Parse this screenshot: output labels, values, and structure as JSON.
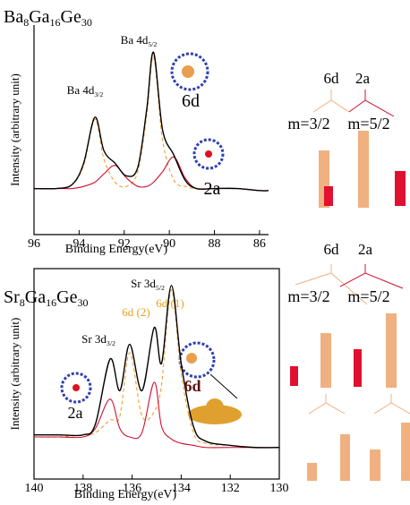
{
  "chart_data": [
    {
      "type": "line",
      "title": [
        "Ba",
        "8",
        "Ga",
        "16",
        "Ge",
        "30"
      ],
      "x_label": "Binding Energy(eV)",
      "y_label": "Intensity (arbitrary unit)",
      "xlim": [
        96,
        85.6
      ],
      "xticks": [
        96,
        94,
        92,
        90,
        88,
        86
      ],
      "ylim": [
        0,
        1
      ],
      "frame": false,
      "x": [
        96,
        95,
        94.3,
        93.8,
        93.3,
        92.9,
        92.4,
        91.9,
        91.4,
        91.0,
        90.7,
        90.3,
        89.8,
        89.3,
        88.8,
        88,
        87,
        86,
        85.6
      ],
      "series": [
        {
          "color": "#f0a030",
          "dashed": true,
          "values": [
            0.22,
            0.22,
            0.24,
            0.33,
            0.55,
            0.36,
            0.25,
            0.23,
            0.3,
            0.57,
            0.85,
            0.45,
            0.26,
            0.23,
            0.22,
            0.22,
            0.22,
            0.21,
            0.21
          ]
        },
        {
          "color": "#d01030",
          "dashed": false,
          "values": [
            0.22,
            0.22,
            0.22,
            0.23,
            0.25,
            0.29,
            0.33,
            0.27,
            0.23,
            0.23,
            0.25,
            0.3,
            0.37,
            0.27,
            0.22,
            0.22,
            0.22,
            0.21,
            0.21
          ]
        },
        {
          "color": "#000000",
          "dashed": false,
          "values": [
            0.22,
            0.22,
            0.24,
            0.34,
            0.56,
            0.4,
            0.34,
            0.28,
            0.32,
            0.6,
            0.87,
            0.5,
            0.38,
            0.26,
            0.22,
            0.22,
            0.22,
            0.21,
            0.21
          ]
        }
      ],
      "annotations": [
        {
          "text": [
            "Ba 4d",
            "3/2"
          ],
          "color": "#000000"
        },
        {
          "text": [
            "Ba 4d",
            "5/2"
          ],
          "color": "#000000"
        },
        {
          "text": [
            "6d"
          ],
          "color": "#000000"
        },
        {
          "text": [
            "2a"
          ],
          "color": "#000000"
        }
      ]
    },
    {
      "type": "line",
      "title": [
        "Sr",
        "8",
        "Ga",
        "16",
        "Ge",
        "30"
      ],
      "x_label": "Binding Energy(eV)",
      "y_label": "Intensity (arbitrary unit)",
      "xlim": [
        140,
        130
      ],
      "xticks": [
        140,
        138,
        136,
        134,
        132,
        130
      ],
      "ylim": [
        0,
        1
      ],
      "frame": true,
      "x": [
        140,
        139,
        138,
        137.5,
        136.9,
        136.5,
        136.1,
        135.6,
        135.1,
        134.8,
        134.4,
        134,
        133.5,
        133,
        132,
        131,
        130
      ],
      "series": [
        {
          "color": "#f0a030",
          "dashed": true,
          "values": [
            0.2,
            0.2,
            0.21,
            0.22,
            0.28,
            0.3,
            0.6,
            0.3,
            0.32,
            0.45,
            0.9,
            0.5,
            0.22,
            0.17,
            0.16,
            0.15,
            0.15
          ]
        },
        {
          "color": "#d01030",
          "dashed": false,
          "values": [
            0.2,
            0.2,
            0.2,
            0.24,
            0.38,
            0.24,
            0.2,
            0.22,
            0.46,
            0.25,
            0.19,
            0.17,
            0.16,
            0.15,
            0.15,
            0.15,
            0.15
          ]
        },
        {
          "color": "#000000",
          "dashed": false,
          "values": [
            0.21,
            0.21,
            0.21,
            0.26,
            0.57,
            0.42,
            0.64,
            0.42,
            0.72,
            0.55,
            0.92,
            0.55,
            0.25,
            0.18,
            0.16,
            0.15,
            0.15
          ]
        }
      ],
      "annotations": [
        {
          "text": [
            "Sr 3d",
            "3/2"
          ],
          "color": "#000000"
        },
        {
          "text": [
            "Sr 3d",
            "5/2"
          ],
          "color": "#000000"
        },
        {
          "text": [
            "6d (2)"
          ],
          "color": "#e8a020"
        },
        {
          "text": [
            "6d (1)"
          ],
          "color": "#e8a020"
        },
        {
          "text": [
            "2a"
          ],
          "color": "#000000"
        },
        {
          "text": [
            "6d"
          ],
          "color": "#5a1010"
        }
      ]
    }
  ],
  "diagrams": [
    {
      "left": "6d",
      "right": "2a",
      "m_left": "m=3/2",
      "m_right": "m=5/2"
    },
    {
      "left": "6d",
      "right": "2a",
      "m_left": "m=3/2",
      "m_right": "m=5/2"
    }
  ]
}
